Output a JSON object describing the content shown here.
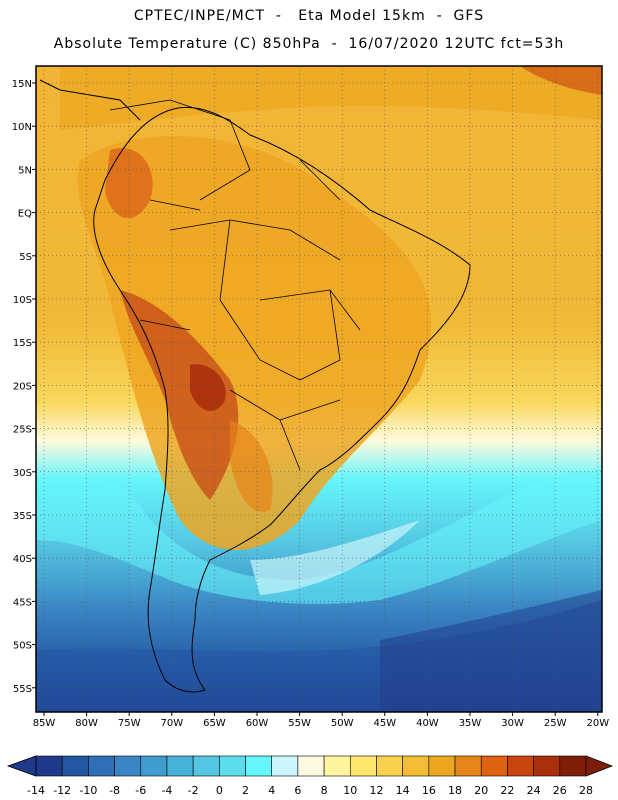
{
  "header": {
    "line1": "CPTEC/INPE/MCT  -   Eta Model 15km  -  GFS",
    "line2": "Absolute Temperature (C) 850hPa  -  16/07/2020 12UTC fct=53h"
  },
  "map": {
    "lat_labels": [
      "15N",
      "10N",
      "5N",
      "EQ",
      "5S",
      "10S",
      "15S",
      "20S",
      "25S",
      "30S",
      "35S",
      "40S",
      "45S",
      "50S",
      "55S"
    ],
    "lon_labels": [
      "85W",
      "80W",
      "75W",
      "70W",
      "65W",
      "60W",
      "55W",
      "50W",
      "45W",
      "40W",
      "35W",
      "30W",
      "25W",
      "20W"
    ]
  },
  "colorbar": {
    "labels": [
      "-14",
      "-12",
      "-10",
      "-8",
      "-6",
      "-4",
      "-2",
      "0",
      "2",
      "4",
      "6",
      "8",
      "10",
      "12",
      "14",
      "16",
      "18",
      "20",
      "22",
      "24",
      "26",
      "28"
    ],
    "colors": [
      "#1f3a8a",
      "#2456a2",
      "#2f6fb6",
      "#3a86c4",
      "#3f9ccf",
      "#47b2d9",
      "#55c6e2",
      "#5ddcec",
      "#66f5fb",
      "#c9f5fb",
      "#fff8e1",
      "#fff5a0",
      "#fde66b",
      "#f8d14e",
      "#f2bd34",
      "#eda61f",
      "#e68418",
      "#de6212",
      "#c9440f",
      "#a8300c",
      "#7e1e08"
    ]
  }
}
